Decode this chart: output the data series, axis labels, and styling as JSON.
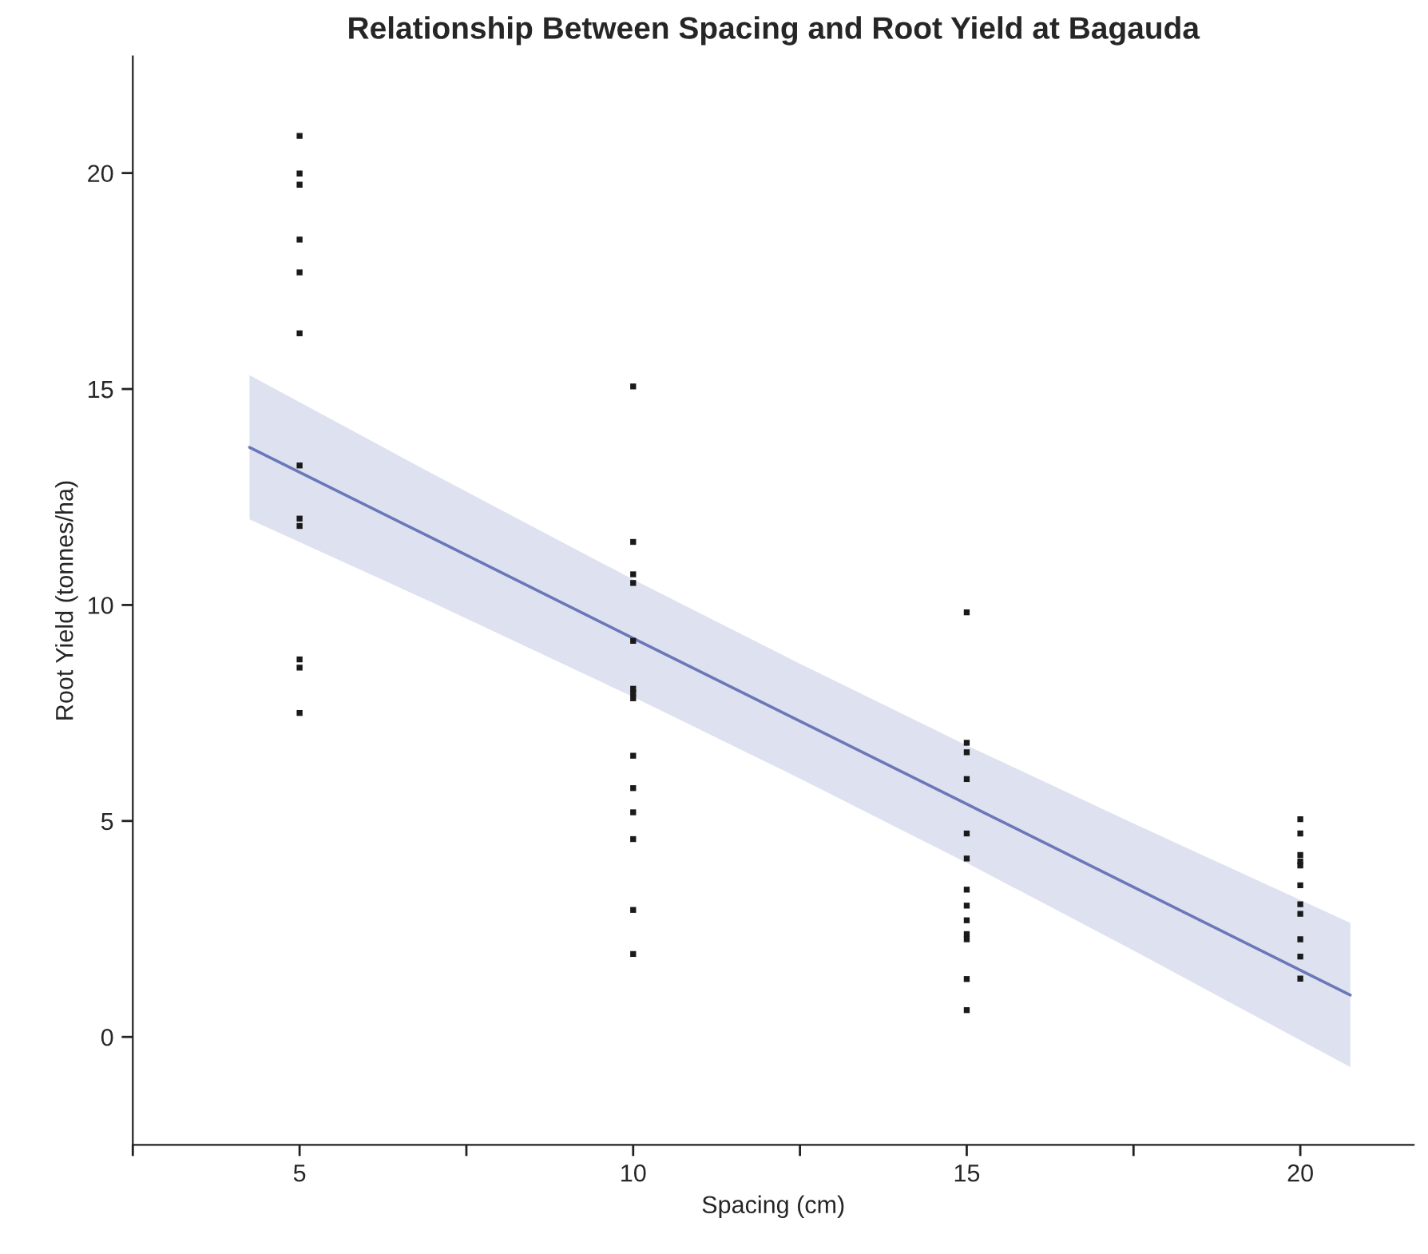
{
  "chart_data": {
    "type": "scatter",
    "title": "Relationship Between Spacing and Root Yield at Bagauda",
    "xlabel": "Spacing (cm)",
    "ylabel": "Root Yield (tonnes/ha)",
    "series": [
      {
        "color": "#1a1a1a",
        "marker": "square",
        "x": [
          5,
          5,
          5,
          5,
          5,
          5,
          5,
          5,
          5,
          5,
          5,
          5,
          10,
          10,
          10,
          10,
          10,
          10,
          10,
          10,
          10,
          10,
          10,
          10,
          10,
          10,
          15,
          15,
          15,
          15,
          15,
          15,
          15,
          15,
          15,
          15,
          15,
          15,
          15,
          20,
          20,
          20,
          20,
          20,
          20,
          20,
          20,
          20,
          20,
          20
        ],
        "values": [
          20.86,
          19.99,
          19.73,
          18.46,
          17.7,
          16.29,
          13.23,
          12.0,
          11.83,
          8.74,
          8.55,
          7.5,
          15.06,
          11.46,
          10.71,
          10.51,
          9.17,
          8.06,
          7.96,
          7.84,
          6.51,
          5.76,
          5.2,
          4.58,
          2.94,
          1.92,
          9.83,
          6.81,
          6.59,
          5.97,
          4.71,
          4.13,
          3.41,
          3.04,
          2.7,
          2.38,
          2.26,
          1.34,
          0.62,
          5.04,
          4.71,
          4.21,
          4.06,
          3.97,
          3.51,
          3.07,
          2.85,
          2.26,
          1.86,
          1.35
        ]
      },
      {
        "type": "line",
        "marker": "none",
        "color": "#6b78b8",
        "x": [
          4.25,
          7,
          10,
          12.5,
          15,
          17.5,
          20.75
        ],
        "values": [
          13.65,
          11.54,
          9.23,
          7.31,
          5.39,
          3.47,
          0.97
        ],
        "lower": [
          11.98,
          10.05,
          7.87,
          5.98,
          4.03,
          2.0,
          -0.7
        ],
        "upper": [
          15.32,
          13.03,
          10.59,
          8.64,
          6.75,
          4.94,
          2.64
        ]
      }
    ],
    "xlim": [
      2.5,
      21.7
    ],
    "ylim": [
      -2.5,
      22.7
    ],
    "xticks": [
      {
        "value": 2.5,
        "label": null
      },
      5,
      {
        "value": 7.5,
        "label": null
      },
      10,
      {
        "value": 12.5,
        "label": null
      },
      15,
      {
        "value": 17.5,
        "label": null
      },
      20
    ],
    "yticks": [
      0,
      5,
      10,
      15,
      20
    ],
    "grid": false,
    "legend": false
  }
}
